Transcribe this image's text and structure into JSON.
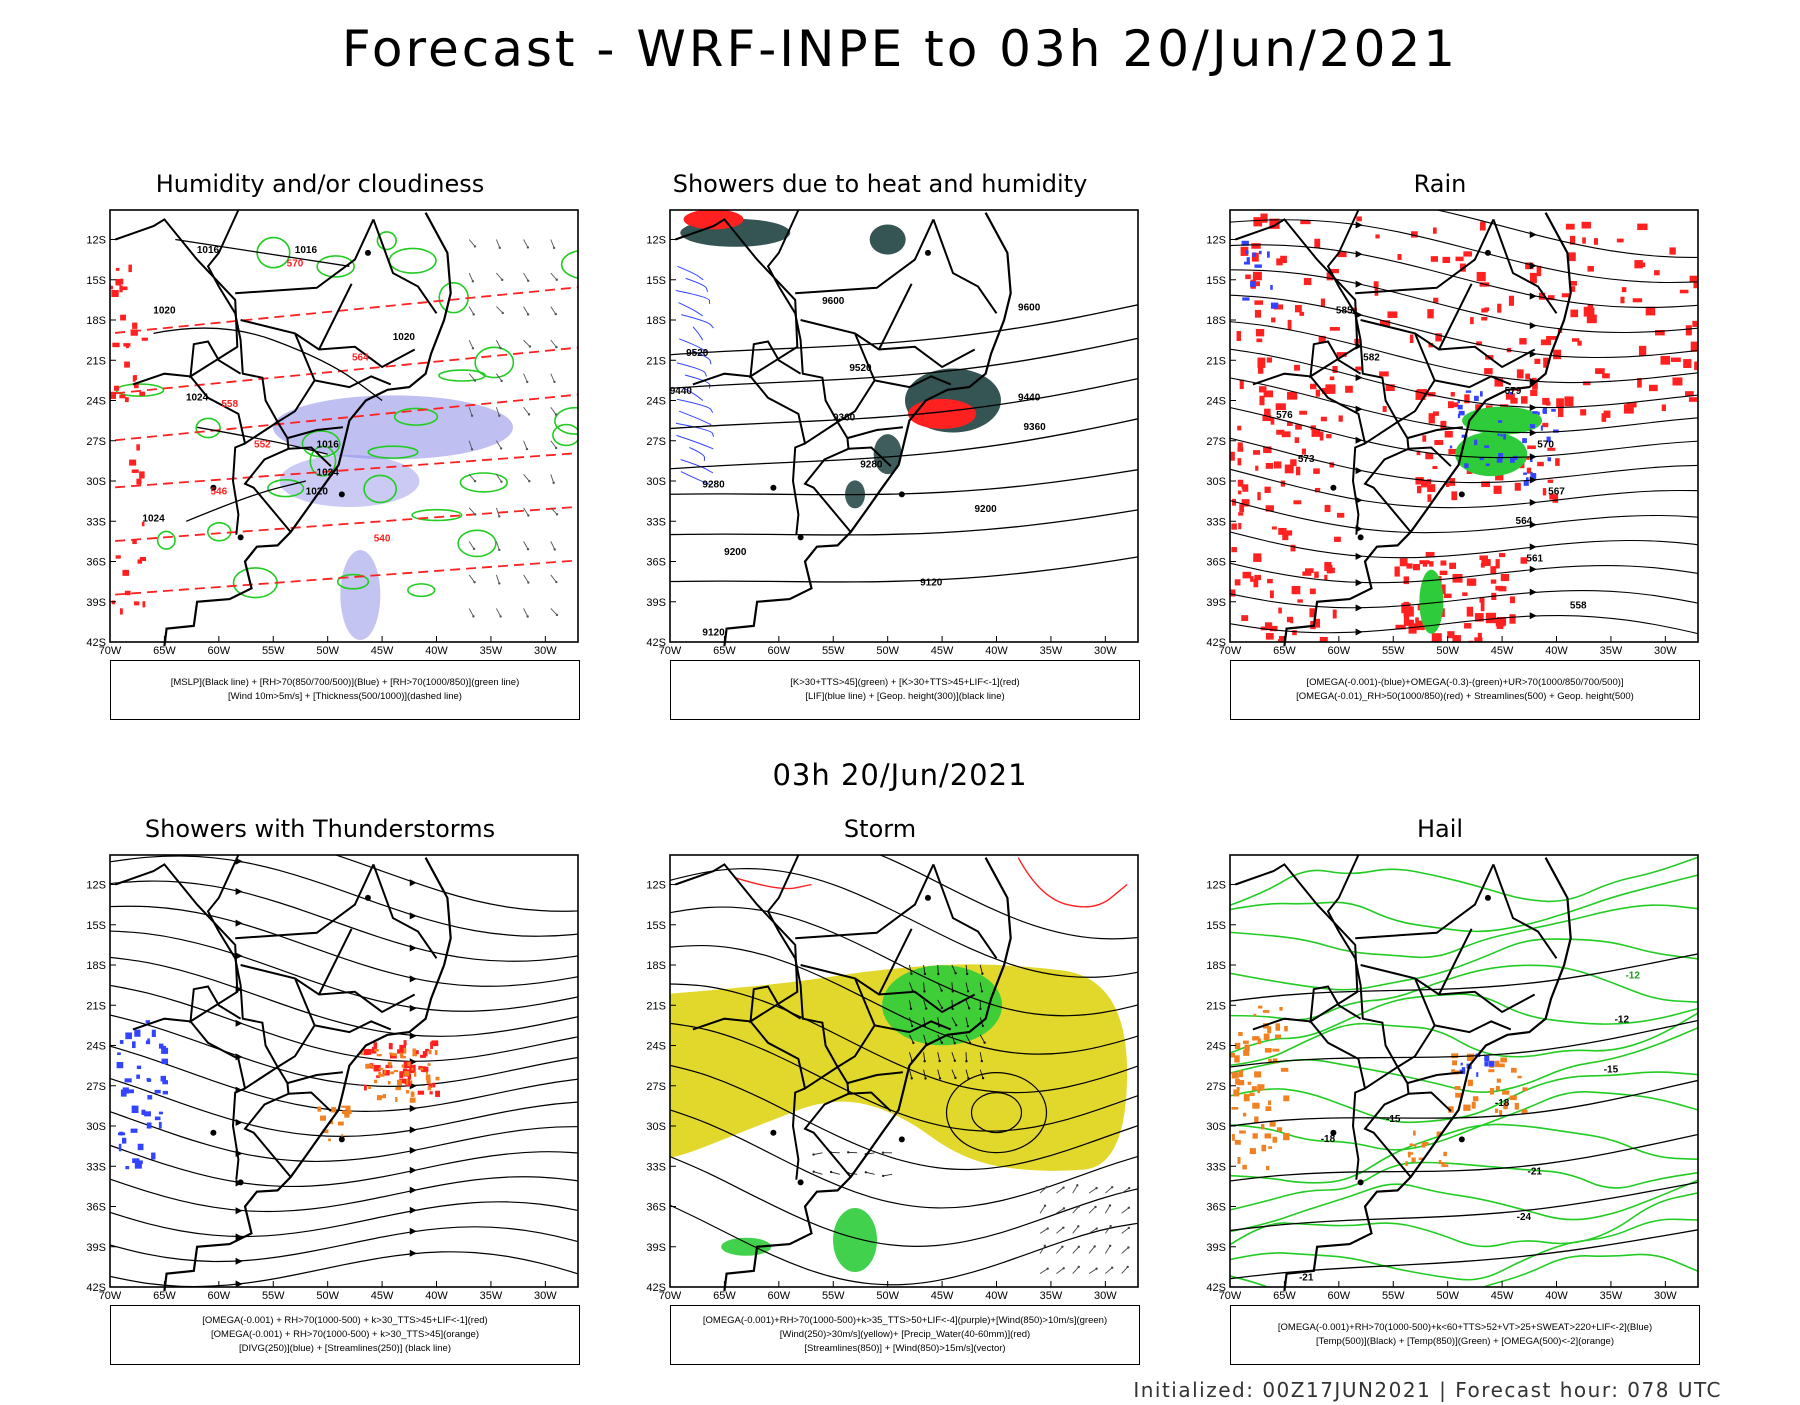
{
  "title": "Forecast - WRF-INPE to 03h 20/Jun/2021",
  "mid_time": "03h 20/Jun/2021",
  "footer": "Initialized: 00Z17JUN2021 | Forecast hour: 078 UTC",
  "axes": {
    "lat_labels": [
      "12S",
      "15S",
      "18S",
      "21S",
      "24S",
      "27S",
      "30S",
      "33S",
      "36S",
      "39S",
      "42S"
    ],
    "lon_labels": [
      "70W",
      "65W",
      "60W",
      "55W",
      "50W",
      "45W",
      "40W",
      "35W",
      "30W"
    ]
  },
  "colors": {
    "black": "#000000",
    "green": "#22cc22",
    "red": "#ff2020",
    "blue": "#3344ff",
    "purple": "#8a8ae8",
    "yellow": "#e2d82c",
    "darkteal": "#2a4b4b",
    "orange": "#f08020"
  },
  "panels": [
    {
      "id": "p1",
      "title": "Humidity and/or cloudiness",
      "legend": [
        "[MSLP](Black line) + [RH>70(850/700/500)](Blue) + [RH>70(1000/850)](green line)",
        "[Wind 10m>5m/s] + [Thickness(500/1000)](dashed line)"
      ],
      "contour_labels": [
        {
          "t": "1016",
          "c": "black"
        },
        {
          "t": "1016",
          "c": "black"
        },
        {
          "t": "1020",
          "c": "black"
        },
        {
          "t": "1020",
          "c": "black"
        },
        {
          "t": "1024",
          "c": "black"
        },
        {
          "t": "1020",
          "c": "black"
        },
        {
          "t": "1024",
          "c": "black"
        },
        {
          "t": "1024",
          "c": "black"
        },
        {
          "t": "1016",
          "c": "black"
        },
        {
          "t": "570",
          "c": "red"
        },
        {
          "t": "564",
          "c": "red"
        },
        {
          "t": "558",
          "c": "red"
        },
        {
          "t": "552",
          "c": "red"
        },
        {
          "t": "546",
          "c": "red"
        },
        {
          "t": "540",
          "c": "red"
        }
      ]
    },
    {
      "id": "p2",
      "title": "Showers due to heat and humidity",
      "legend": [
        "[K>30+TTS>45](green) + [K>30+TTS>45+LIF<-1](red)",
        "[LIF](blue line) + [Geop. height(300)](black line)"
      ],
      "contour_labels": [
        {
          "t": "9600",
          "c": "black"
        },
        {
          "t": "9600",
          "c": "black"
        },
        {
          "t": "9520",
          "c": "black"
        },
        {
          "t": "9520",
          "c": "black"
        },
        {
          "t": "9440",
          "c": "black"
        },
        {
          "t": "9440",
          "c": "black"
        },
        {
          "t": "9360",
          "c": "black"
        },
        {
          "t": "9360",
          "c": "black"
        },
        {
          "t": "9280",
          "c": "black"
        },
        {
          "t": "9280",
          "c": "black"
        },
        {
          "t": "9200",
          "c": "black"
        },
        {
          "t": "9200",
          "c": "black"
        },
        {
          "t": "9120",
          "c": "black"
        },
        {
          "t": "9120",
          "c": "black"
        }
      ]
    },
    {
      "id": "p3",
      "title": "Rain",
      "legend": [
        "[OMEGA(-0.001)-(blue)+OMEGA(-0.3)-(green)+UR>70(1000/850/700/500)]",
        "[OMEGA(-0.01)_RH>50(1000/850)(red) + Streamlines(500) + Geop. height(500)"
      ],
      "contour_labels": [
        {
          "t": "585",
          "c": "black"
        },
        {
          "t": "582",
          "c": "black"
        },
        {
          "t": "579",
          "c": "black"
        },
        {
          "t": "576",
          "c": "black"
        },
        {
          "t": "573",
          "c": "black"
        },
        {
          "t": "570",
          "c": "black"
        },
        {
          "t": "567",
          "c": "black"
        },
        {
          "t": "564",
          "c": "black"
        },
        {
          "t": "561",
          "c": "black"
        },
        {
          "t": "558",
          "c": "black"
        }
      ]
    },
    {
      "id": "p4",
      "title": "Showers with Thunderstorms",
      "legend": [
        "[OMEGA(-0.001) + RH>70(1000-500) + k>30_TTS>45+LIF<-1](red)",
        "[OMEGA(-0.001) + RH>70(1000-500) + k>30_TTS>45](orange)",
        "[DIVG(250)](blue) + [Streamlines(250)] (black line)"
      ],
      "contour_labels": []
    },
    {
      "id": "p5",
      "title": "Storm",
      "legend": [
        "[OMEGA(-0.001)+RH>70(1000-500)+k>35_TTS>50+LIF<-4](purple)+[Wind(850)>10m/s](green)",
        "[Wind(250)>30m/s](yellow)+ [Precip_Water(40-60mm)](red)",
        "[Streamlines(850)] + [Wind(850)>15m/s](vector)"
      ],
      "contour_labels": []
    },
    {
      "id": "p6",
      "title": "Hail",
      "legend": [
        "[OMEGA(-0.001)+RH>70(1000-500)+k<60+TTS>52+VT>25+SWEAT>220+LIF<-2](Blue)",
        "[Temp(500)](Black) + [Temp(850)](Green) + [OMEGA(500)<-2](orange)"
      ],
      "contour_labels": [
        {
          "t": "-12",
          "c": "green"
        },
        {
          "t": "-12",
          "c": "black"
        },
        {
          "t": "-15",
          "c": "black"
        },
        {
          "t": "-15",
          "c": "black"
        },
        {
          "t": "-18",
          "c": "black"
        },
        {
          "t": "-18",
          "c": "black"
        },
        {
          "t": "-21",
          "c": "black"
        },
        {
          "t": "-24",
          "c": "black"
        },
        {
          "t": "-21",
          "c": "black"
        }
      ]
    }
  ]
}
